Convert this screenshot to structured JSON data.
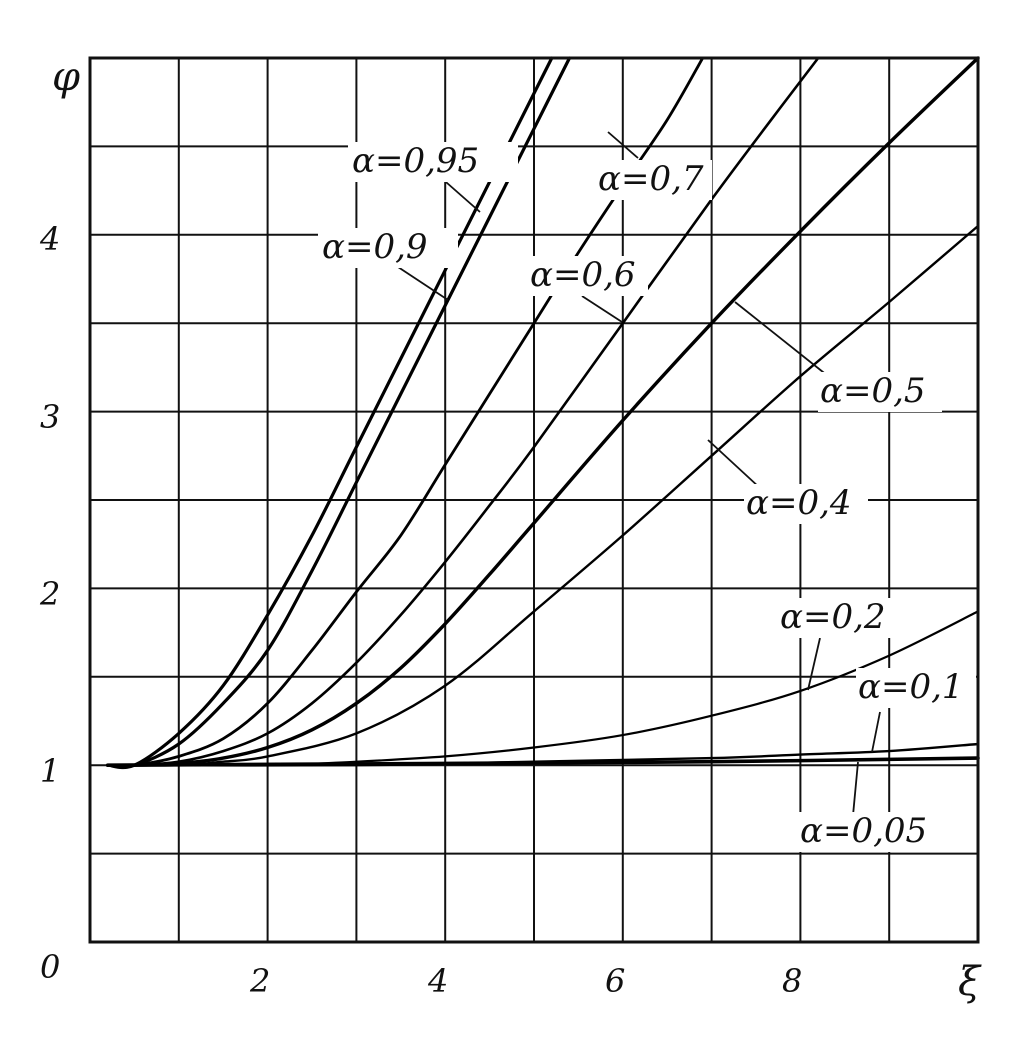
{
  "chart_data": {
    "type": "line",
    "xlabel": "ξ",
    "ylabel": "φ",
    "xlim": [
      0,
      10
    ],
    "ylim": [
      0,
      5
    ],
    "grid": true,
    "x_ticks": [
      {
        "value": 0,
        "label": "0"
      },
      {
        "value": 2,
        "label": "2"
      },
      {
        "value": 4,
        "label": "4"
      },
      {
        "value": 6,
        "label": "6"
      },
      {
        "value": 8,
        "label": "8"
      }
    ],
    "y_ticks": [
      {
        "value": 1,
        "label": "1"
      },
      {
        "value": 2,
        "label": "2"
      },
      {
        "value": 3,
        "label": "3"
      },
      {
        "value": 4,
        "label": "4"
      }
    ],
    "series": [
      {
        "name": "α=0,95",
        "points": [
          [
            0.2,
            1.0
          ],
          [
            0.5,
            1.0
          ],
          [
            1,
            1.18
          ],
          [
            1.5,
            1.45
          ],
          [
            2,
            1.85
          ],
          [
            2.5,
            2.3
          ],
          [
            3,
            2.8
          ],
          [
            3.5,
            3.3
          ],
          [
            4,
            3.8
          ],
          [
            4.5,
            4.3
          ],
          [
            5,
            4.8
          ],
          [
            5.2,
            5.0
          ]
        ]
      },
      {
        "name": "α=0,9",
        "points": [
          [
            0.2,
            1.0
          ],
          [
            0.5,
            1.0
          ],
          [
            1,
            1.12
          ],
          [
            1.5,
            1.35
          ],
          [
            2,
            1.65
          ],
          [
            2.5,
            2.1
          ],
          [
            3,
            2.6
          ],
          [
            3.5,
            3.1
          ],
          [
            4,
            3.6
          ],
          [
            4.5,
            4.1
          ],
          [
            5,
            4.6
          ],
          [
            5.4,
            5.0
          ]
        ]
      },
      {
        "name": "α=0,7",
        "points": [
          [
            0.2,
            1.0
          ],
          [
            0.5,
            1.0
          ],
          [
            1,
            1.05
          ],
          [
            1.5,
            1.15
          ],
          [
            2,
            1.35
          ],
          [
            2.5,
            1.65
          ],
          [
            3,
            1.98
          ],
          [
            3.5,
            2.3
          ],
          [
            4,
            2.7
          ],
          [
            4.5,
            3.1
          ],
          [
            5,
            3.5
          ],
          [
            5.5,
            3.9
          ],
          [
            6,
            4.28
          ],
          [
            6.5,
            4.65
          ],
          [
            6.9,
            5.0
          ]
        ]
      },
      {
        "name": "α=0,6",
        "points": [
          [
            0.2,
            1.0
          ],
          [
            0.5,
            1.0
          ],
          [
            1,
            1.02
          ],
          [
            1.5,
            1.08
          ],
          [
            2,
            1.18
          ],
          [
            2.5,
            1.35
          ],
          [
            3,
            1.58
          ],
          [
            3.5,
            1.85
          ],
          [
            4,
            2.15
          ],
          [
            4.5,
            2.47
          ],
          [
            5,
            2.8
          ],
          [
            6,
            3.5
          ],
          [
            7,
            4.2
          ],
          [
            7.7,
            4.67
          ],
          [
            8.2,
            5.0
          ]
        ]
      },
      {
        "name": "α=0,5",
        "points": [
          [
            0.2,
            1.0
          ],
          [
            0.5,
            1.0
          ],
          [
            1,
            1.01
          ],
          [
            1.5,
            1.04
          ],
          [
            2,
            1.1
          ],
          [
            2.5,
            1.2
          ],
          [
            3,
            1.35
          ],
          [
            3.5,
            1.55
          ],
          [
            4,
            1.8
          ],
          [
            4.5,
            2.08
          ],
          [
            5,
            2.37
          ],
          [
            6,
            2.95
          ],
          [
            7,
            3.5
          ],
          [
            8,
            4.02
          ],
          [
            9,
            4.52
          ],
          [
            10,
            5.0
          ]
        ]
      },
      {
        "name": "α=0,4",
        "points": [
          [
            0.2,
            1.0
          ],
          [
            1,
            1.0
          ],
          [
            1.5,
            1.02
          ],
          [
            2,
            1.05
          ],
          [
            3,
            1.18
          ],
          [
            4,
            1.45
          ],
          [
            5,
            1.87
          ],
          [
            6,
            2.3
          ],
          [
            7,
            2.75
          ],
          [
            8,
            3.2
          ],
          [
            9,
            3.62
          ],
          [
            10,
            4.05
          ]
        ]
      },
      {
        "name": "α=0,2",
        "points": [
          [
            0.2,
            1.0
          ],
          [
            2,
            1.0
          ],
          [
            3,
            1.02
          ],
          [
            4,
            1.05
          ],
          [
            5,
            1.1
          ],
          [
            6,
            1.17
          ],
          [
            7,
            1.28
          ],
          [
            8,
            1.42
          ],
          [
            9,
            1.62
          ],
          [
            10,
            1.87
          ]
        ]
      },
      {
        "name": "α=0,1",
        "points": [
          [
            0.2,
            1.0
          ],
          [
            3,
            1.0
          ],
          [
            5,
            1.02
          ],
          [
            7,
            1.04
          ],
          [
            8,
            1.06
          ],
          [
            9,
            1.08
          ],
          [
            10,
            1.12
          ]
        ]
      },
      {
        "name": "α=0,05",
        "points": [
          [
            0.2,
            1.0
          ],
          [
            4,
            1.01
          ],
          [
            7,
            1.02
          ],
          [
            10,
            1.04
          ]
        ]
      }
    ]
  },
  "series_labels": [
    {
      "text": "α=0,95"
    },
    {
      "text": "α=0,9"
    },
    {
      "text": "α=0,7"
    },
    {
      "text": "α=0,6"
    },
    {
      "text": "α=0,5"
    },
    {
      "text": "α=0,4"
    },
    {
      "text": "α=0,2"
    },
    {
      "text": "α=0,1"
    },
    {
      "text": "α=0,05"
    }
  ]
}
